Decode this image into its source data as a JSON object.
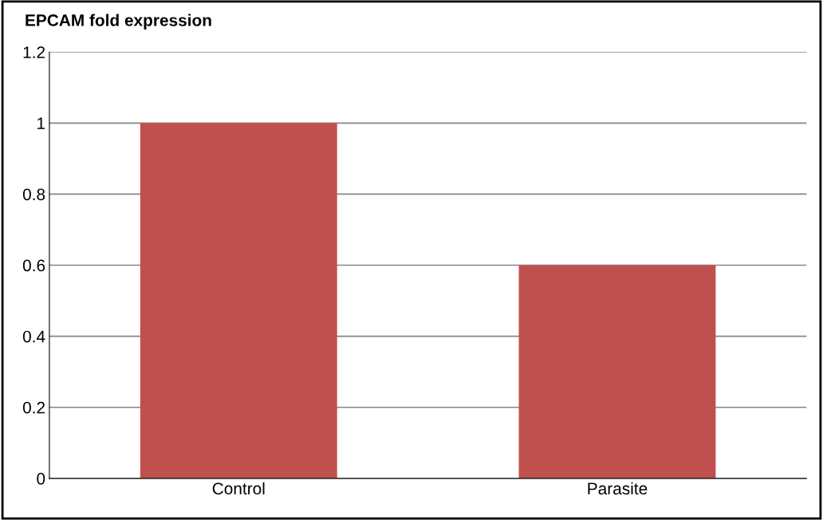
{
  "chart_data": {
    "type": "bar",
    "title": "EPCAM fold expression",
    "categories": [
      "Control",
      "Parasite"
    ],
    "values": [
      1,
      0.6
    ],
    "color": "#c0504d",
    "ylim": [
      0,
      1.2
    ],
    "yticks": [
      0,
      0.2,
      0.4,
      0.6,
      0.8,
      1,
      1.2
    ],
    "grid": "y"
  }
}
